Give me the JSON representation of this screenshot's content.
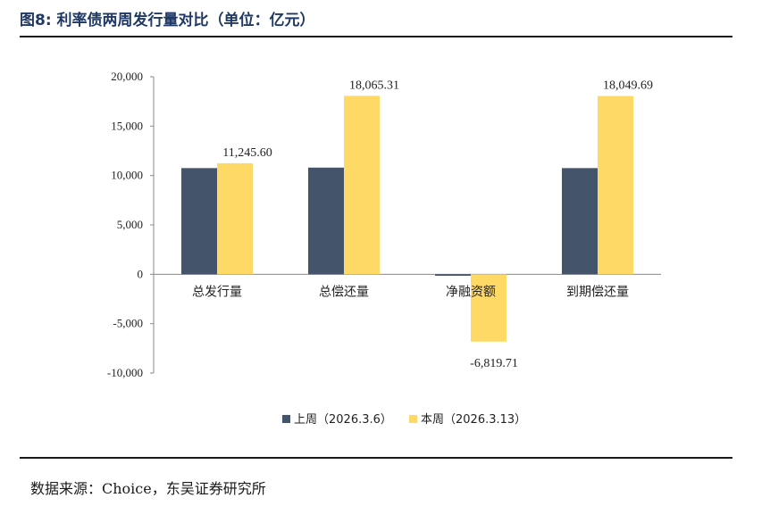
{
  "figure_title": "图8:  利率债两周发行量对比（单位：亿元）",
  "source": "数据来源：Choice，东吴证券研究所",
  "colors": {
    "series_prev": "#44546a",
    "series_curr": "#ffd966",
    "title": "#1f3864"
  },
  "chart_data": {
    "type": "bar",
    "categories": [
      "总发行量",
      "总偿还量",
      "净融资额",
      "到期偿还量"
    ],
    "series": [
      {
        "name": "上周（2026.3.6）",
        "values": [
          10750,
          10800,
          -150,
          10750
        ]
      },
      {
        "name": "本周（2026.3.13）",
        "values": [
          11245.6,
          18065.31,
          -6819.71,
          18049.69
        ]
      }
    ],
    "data_labels": [
      {
        "category_index": 0,
        "series_index": 1,
        "text": "11,245.60"
      },
      {
        "category_index": 1,
        "series_index": 1,
        "text": "18,065.31"
      },
      {
        "category_index": 2,
        "series_index": 1,
        "text": "-6,819.71"
      },
      {
        "category_index": 3,
        "series_index": 1,
        "text": "18,049.69"
      }
    ],
    "yticks": [
      20000,
      15000,
      10000,
      5000,
      0,
      -5000,
      -10000
    ],
    "ytick_labels": [
      "20,000",
      "15,000",
      "10,000",
      "5,000",
      "0",
      "-5,000",
      "-10,000"
    ],
    "ylim": [
      -10000,
      20000
    ],
    "grid": false,
    "legend_position": "bottom"
  }
}
